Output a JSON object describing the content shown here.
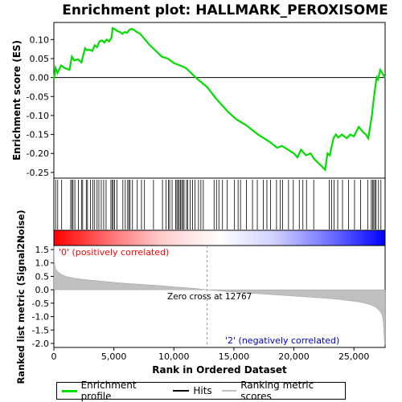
{
  "chart_data": [
    {
      "type": "line",
      "title": "Enrichment plot: HALLMARK_PEROXISOME",
      "ylabel": "Enrichment score (ES)",
      "xlim": [
        0,
        27600
      ],
      "ylim": [
        -0.265,
        0.145
      ],
      "yticks": [
        0.1,
        0.05,
        0.0,
        -0.05,
        -0.1,
        -0.15,
        -0.2,
        -0.25
      ],
      "ytick_labels": [
        "0.10",
        "0.05",
        "0.00",
        "-0.05",
        "-0.10",
        "-0.15",
        "-0.20",
        "-0.25"
      ],
      "grid": false,
      "series": [
        {
          "name": "Enrichment profile",
          "color": "#00dd00",
          "x": [
            0,
            150,
            300,
            600,
            900,
            1300,
            1500,
            1700,
            2000,
            2300,
            2600,
            2750,
            3000,
            3200,
            3400,
            3600,
            3800,
            4000,
            4200,
            4400,
            4600,
            4800,
            4900,
            5100,
            5300,
            5500,
            5700,
            5900,
            6100,
            6300,
            6500,
            6700,
            6900,
            7200,
            7600,
            8000,
            8500,
            9000,
            9500,
            10000,
            10500,
            11000,
            11500,
            12000,
            12767,
            13500,
            14500,
            15200,
            16000,
            17000,
            18000,
            18600,
            19000,
            19500,
            20000,
            20300,
            20600,
            21000,
            21400,
            21700,
            22200,
            22600,
            22800,
            23000,
            23100,
            23300,
            23500,
            23700,
            24000,
            24400,
            24700,
            25000,
            25400,
            25800,
            26000,
            26200,
            26400,
            26500,
            26600,
            26700,
            26800,
            26900,
            27000,
            27200,
            27400,
            27600
          ],
          "values": [
            -0.005,
            0.025,
            0.012,
            0.032,
            0.025,
            0.02,
            0.055,
            0.045,
            0.048,
            0.04,
            0.077,
            0.072,
            0.073,
            0.07,
            0.085,
            0.08,
            0.095,
            0.098,
            0.092,
            0.1,
            0.095,
            0.105,
            0.13,
            0.127,
            0.122,
            0.12,
            0.115,
            0.12,
            0.118,
            0.126,
            0.128,
            0.125,
            0.12,
            0.115,
            0.1,
            0.085,
            0.07,
            0.055,
            0.05,
            0.038,
            0.032,
            0.025,
            0.01,
            -0.005,
            -0.025,
            -0.055,
            -0.09,
            -0.11,
            -0.125,
            -0.15,
            -0.17,
            -0.185,
            -0.18,
            -0.19,
            -0.2,
            -0.21,
            -0.19,
            -0.205,
            -0.2,
            -0.215,
            -0.23,
            -0.243,
            -0.2,
            -0.205,
            -0.188,
            -0.16,
            -0.15,
            -0.158,
            -0.15,
            -0.16,
            -0.15,
            -0.155,
            -0.13,
            -0.145,
            -0.15,
            -0.16,
            -0.12,
            -0.1,
            -0.07,
            -0.045,
            -0.02,
            0.0,
            -0.005,
            0.02,
            0.01,
            0.0
          ]
        }
      ]
    },
    {
      "type": "scatter",
      "series": [
        {
          "name": "Hits",
          "color": "#000000",
          "x": [
            150,
            320,
            650,
            1400,
            1500,
            1600,
            1750,
            2050,
            2300,
            2400,
            2700,
            2800,
            3050,
            3250,
            3400,
            3600,
            3750,
            3950,
            4150,
            4350,
            4750,
            4850,
            4950,
            5050,
            5250,
            5750,
            5950,
            6150,
            6250,
            6350,
            6550,
            6950,
            7300,
            7550,
            8300,
            9050,
            9350,
            9550,
            9650,
            9850,
            10150,
            10250,
            10350,
            10450,
            10550,
            10650,
            10750,
            10850,
            11050,
            11150,
            11350,
            11550,
            11750,
            12050,
            12250,
            12450,
            13350,
            13550,
            13750,
            14050,
            14450,
            15050,
            15350,
            15550,
            16050,
            16550,
            16950,
            17450,
            17750,
            18050,
            18550,
            18850,
            19050,
            19550,
            19950,
            20450,
            20750,
            21050,
            21650,
            22950,
            23150,
            23350,
            23650,
            24050,
            24550,
            25050,
            25550,
            26150,
            26450,
            26550,
            26650,
            26750,
            26850,
            27050,
            27250
          ]
        }
      ]
    },
    {
      "type": "area",
      "xlabel": "Rank in Ordered Dataset",
      "ylabel": "Ranked list metric (Signal2Noise)",
      "xlim": [
        0,
        27600
      ],
      "ylim": [
        -2.15,
        1.65
      ],
      "yticks": [
        1.5,
        1.0,
        0.5,
        0.0,
        -0.5,
        -1.0,
        -1.5,
        -2.0
      ],
      "ytick_labels": [
        "1.5",
        "1.0",
        "0.5",
        "0.0",
        "-0.5",
        "-1.0",
        "-1.5",
        "-2.0"
      ],
      "xticks": [
        0,
        5000,
        10000,
        15000,
        20000,
        25000
      ],
      "xtick_labels": [
        "0",
        "5,000",
        "10,000",
        "15,000",
        "20,000",
        "25,000"
      ],
      "series": [
        {
          "name": "Ranking metric scores",
          "color": "#c0c0c0",
          "x": [
            0,
            30,
            80,
            150,
            300,
            600,
            1000,
            1500,
            2000,
            3000,
            4000,
            5000,
            6000,
            7000,
            8000,
            9000,
            10000,
            11000,
            12000,
            12767,
            13500,
            14500,
            15500,
            16500,
            17500,
            18500,
            19500,
            20500,
            21500,
            22500,
            23500,
            24500,
            25500,
            26000,
            26500,
            26800,
            27000,
            27200,
            27350,
            27450,
            27500,
            27550,
            27600
          ],
          "values": [
            1.62,
            1.1,
            0.9,
            0.78,
            0.68,
            0.58,
            0.5,
            0.45,
            0.41,
            0.36,
            0.32,
            0.28,
            0.24,
            0.21,
            0.18,
            0.15,
            0.11,
            0.08,
            0.04,
            0.0,
            -0.03,
            -0.07,
            -0.1,
            -0.13,
            -0.16,
            -0.19,
            -0.22,
            -0.25,
            -0.28,
            -0.31,
            -0.35,
            -0.4,
            -0.46,
            -0.51,
            -0.58,
            -0.65,
            -0.72,
            -0.82,
            -0.95,
            -1.2,
            -1.6,
            -2.05,
            -2.05
          ]
        }
      ],
      "annotations": {
        "positive": "'0' (positively correlated)",
        "negative": "'2' (negatively correlated)",
        "zero_cross": "Zero cross at 12767",
        "zero_cross_x": 12767
      },
      "colorbar_stops": [
        "#ff0000",
        "#ff7070",
        "#ffd0d0",
        "#ffffff",
        "#d0d0ff",
        "#7070ff",
        "#0000ff"
      ]
    }
  ],
  "legend": {
    "items": [
      {
        "label": "Enrichment profile",
        "color": "#00dd00"
      },
      {
        "label": "Hits",
        "color": "#000000"
      },
      {
        "label": "Ranking metric scores",
        "color": "#c0c0c0"
      }
    ]
  }
}
